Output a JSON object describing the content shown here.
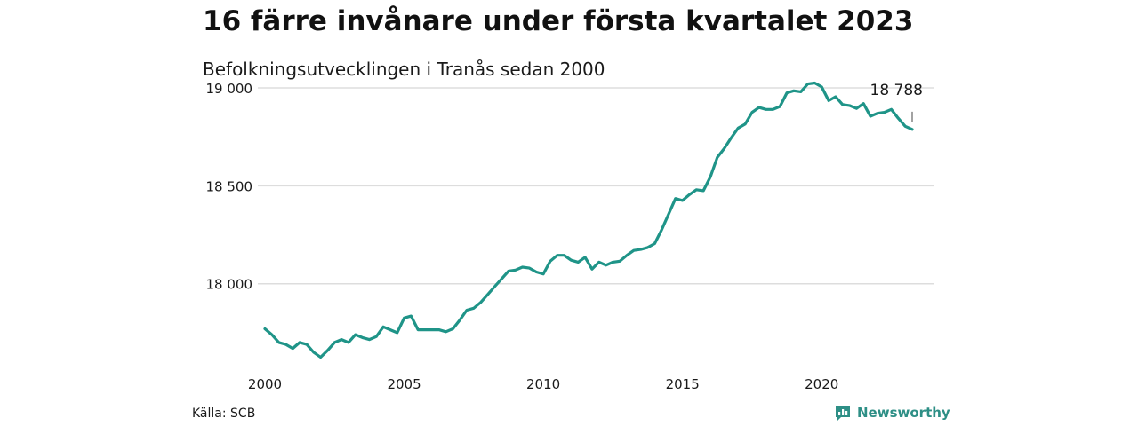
{
  "header": {
    "title": "16 färre invånare under första kvartalet 2023",
    "subtitle": "Befolkningsutvecklingen i Tranås sedan 2000"
  },
  "footer": {
    "source": "Källa: SCB",
    "brand": "Newsworthy",
    "brand_icon": "chart-logo-icon"
  },
  "colors": {
    "line": "#1f9488",
    "grid": "#dddddd",
    "brand": "#2e8f86"
  },
  "chart_data": {
    "type": "line",
    "title": "16 färre invånare under första kvartalet 2023",
    "subtitle": "Befolkningsutvecklingen i Tranås sedan 2000",
    "xlabel": "",
    "ylabel": "",
    "xlim": [
      2000,
      2023.25
    ],
    "ylim": [
      17600,
      19050
    ],
    "x_ticks": [
      {
        "value": 2000,
        "label": "2000"
      },
      {
        "value": 2005,
        "label": "2005"
      },
      {
        "value": 2010,
        "label": "2010"
      },
      {
        "value": 2015,
        "label": "2015"
      },
      {
        "value": 2020,
        "label": "2020"
      }
    ],
    "y_ticks": [
      {
        "value": 18000,
        "label": "18 000"
      },
      {
        "value": 18500,
        "label": "18 500"
      },
      {
        "value": 19000,
        "label": "19 000"
      }
    ],
    "grid": true,
    "last_label": "18 788",
    "series": [
      {
        "values": [
          [
            2000.0,
            17770
          ],
          [
            2000.25,
            17740
          ],
          [
            2000.5,
            17700
          ],
          [
            2000.75,
            17690
          ],
          [
            2001.0,
            17670
          ],
          [
            2001.25,
            17700
          ],
          [
            2001.5,
            17690
          ],
          [
            2001.75,
            17650
          ],
          [
            2002.0,
            17625
          ],
          [
            2002.25,
            17660
          ],
          [
            2002.5,
            17700
          ],
          [
            2002.75,
            17715
          ],
          [
            2003.0,
            17700
          ],
          [
            2003.25,
            17740
          ],
          [
            2003.5,
            17725
          ],
          [
            2003.75,
            17715
          ],
          [
            2004.0,
            17730
          ],
          [
            2004.25,
            17780
          ],
          [
            2004.5,
            17765
          ],
          [
            2004.75,
            17750
          ],
          [
            2005.0,
            17825
          ],
          [
            2005.25,
            17835
          ],
          [
            2005.5,
            17765
          ],
          [
            2005.75,
            17765
          ],
          [
            2006.0,
            17765
          ],
          [
            2006.25,
            17765
          ],
          [
            2006.5,
            17755
          ],
          [
            2006.75,
            17770
          ],
          [
            2007.0,
            17815
          ],
          [
            2007.25,
            17865
          ],
          [
            2007.5,
            17875
          ],
          [
            2007.75,
            17905
          ],
          [
            2008.0,
            17945
          ],
          [
            2008.25,
            17985
          ],
          [
            2008.5,
            18025
          ],
          [
            2008.75,
            18065
          ],
          [
            2009.0,
            18070
          ],
          [
            2009.25,
            18085
          ],
          [
            2009.5,
            18080
          ],
          [
            2009.75,
            18060
          ],
          [
            2010.0,
            18050
          ],
          [
            2010.25,
            18115
          ],
          [
            2010.5,
            18145
          ],
          [
            2010.75,
            18145
          ],
          [
            2011.0,
            18120
          ],
          [
            2011.25,
            18110
          ],
          [
            2011.5,
            18135
          ],
          [
            2011.75,
            18075
          ],
          [
            2012.0,
            18110
          ],
          [
            2012.25,
            18095
          ],
          [
            2012.5,
            18110
          ],
          [
            2012.75,
            18115
          ],
          [
            2013.0,
            18145
          ],
          [
            2013.25,
            18170
          ],
          [
            2013.5,
            18175
          ],
          [
            2013.75,
            18185
          ],
          [
            2014.0,
            18205
          ],
          [
            2014.25,
            18275
          ],
          [
            2014.5,
            18355
          ],
          [
            2014.75,
            18435
          ],
          [
            2015.0,
            18425
          ],
          [
            2015.25,
            18455
          ],
          [
            2015.5,
            18480
          ],
          [
            2015.75,
            18475
          ],
          [
            2016.0,
            18545
          ],
          [
            2016.25,
            18645
          ],
          [
            2016.5,
            18690
          ],
          [
            2016.75,
            18745
          ],
          [
            2017.0,
            18795
          ],
          [
            2017.25,
            18815
          ],
          [
            2017.5,
            18875
          ],
          [
            2017.75,
            18900
          ],
          [
            2018.0,
            18890
          ],
          [
            2018.25,
            18890
          ],
          [
            2018.5,
            18905
          ],
          [
            2018.75,
            18975
          ],
          [
            2019.0,
            18985
          ],
          [
            2019.25,
            18980
          ],
          [
            2019.5,
            19020
          ],
          [
            2019.75,
            19025
          ],
          [
            2020.0,
            19005
          ],
          [
            2020.25,
            18935
          ],
          [
            2020.5,
            18955
          ],
          [
            2020.75,
            18915
          ],
          [
            2021.0,
            18910
          ],
          [
            2021.25,
            18895
          ],
          [
            2021.5,
            18920
          ],
          [
            2021.75,
            18855
          ],
          [
            2022.0,
            18870
          ],
          [
            2022.25,
            18875
          ],
          [
            2022.5,
            18890
          ],
          [
            2022.75,
            18845
          ],
          [
            2023.0,
            18804
          ],
          [
            2023.25,
            18788
          ]
        ]
      }
    ]
  }
}
